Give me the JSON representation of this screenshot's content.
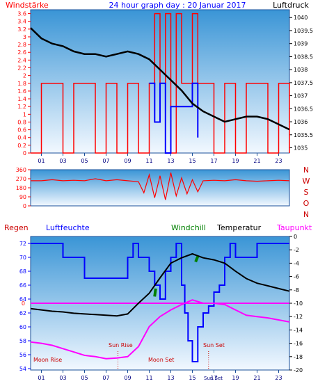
{
  "header": {
    "left": "Windstärke",
    "center": "24 hour graph day : 20 Januar 2017",
    "right": "Luftdruck"
  },
  "colors": {
    "red": "#ff0000",
    "blue": "#0000ff",
    "black": "#000000",
    "green": "#008000",
    "magenta": "#ff00ff",
    "darkred": "#cc0000",
    "navy": "#000080",
    "grad_top": "#3a95d6",
    "grad_bottom": "#f2f8ff"
  },
  "chart_data": [
    {
      "type": "line",
      "title": "Windstärke / Luftdruck",
      "xticks": [
        "01",
        "03",
        "05",
        "07",
        "09",
        "11",
        "13",
        "15",
        "17",
        "19",
        "21",
        "23"
      ],
      "y_left": {
        "label": "Windstärke",
        "ticks": [
          "0",
          "0.2",
          "0.4",
          "0.6",
          "0.8",
          "1",
          "1.2",
          "1.4",
          "1.6",
          "1.8",
          "2",
          "2.2",
          "2.4",
          "2.6",
          "2.8",
          "3",
          "3.2",
          "3.4",
          "3.6"
        ],
        "range": [
          0,
          3.7
        ]
      },
      "y_right": {
        "label": "Luftdruck",
        "ticks": [
          "1035",
          "1035.5",
          "1036",
          "1036.5",
          "1037",
          "1037.5",
          "1038",
          "1038.5",
          "1039",
          "1039.5",
          "1040"
        ],
        "range": [
          1034.8,
          1040.3
        ]
      },
      "series": [
        {
          "name": "Luftdruck",
          "x": [
            0,
            1,
            2,
            3,
            4,
            5,
            6,
            7,
            8,
            9,
            10,
            11,
            12,
            13,
            14,
            15,
            16,
            17,
            18,
            19,
            20,
            21,
            22,
            23,
            24
          ],
          "values": [
            1039.6,
            1039.2,
            1039.0,
            1038.9,
            1038.7,
            1038.6,
            1038.6,
            1038.5,
            1038.6,
            1038.7,
            1038.6,
            1038.4,
            1038.0,
            1037.6,
            1037.2,
            1036.7,
            1036.4,
            1036.2,
            1036.0,
            1036.1,
            1036.2,
            1036.2,
            1036.1,
            1035.9,
            1035.7
          ]
        },
        {
          "name": "Windstärke",
          "x": [
            0,
            1,
            2,
            3,
            4,
            5,
            6,
            7,
            8,
            9,
            10,
            11,
            11.5,
            12,
            12.5,
            13,
            13.5,
            14,
            15,
            15.5,
            16,
            17,
            18,
            19,
            20,
            21,
            22,
            23,
            24
          ],
          "values": [
            0,
            1.8,
            1.8,
            0,
            1.8,
            1.8,
            0,
            1.8,
            0,
            1.8,
            0,
            1.8,
            3.6,
            1.8,
            3.6,
            0,
            3.6,
            1.8,
            3.6,
            1.8,
            1.8,
            0,
            1.8,
            0,
            1.8,
            1.8,
            0,
            1.8,
            0
          ]
        },
        {
          "name": "Böen",
          "x": [
            11,
            11.5,
            12,
            12.5,
            13,
            15,
            15.5
          ],
          "values": [
            1.8,
            0.8,
            1.8,
            0,
            1.2,
            1.8,
            0.4
          ]
        }
      ]
    },
    {
      "type": "line",
      "title": "Windrichtung",
      "y_left": {
        "ticks": [
          "0",
          "90",
          "180",
          "270",
          "360"
        ],
        "range": [
          0,
          360
        ]
      },
      "y_right": {
        "ticks": [
          "N",
          "W",
          "S",
          "O",
          "N"
        ]
      },
      "series": [
        {
          "name": "Windrichtung",
          "x": [
            0,
            1,
            2,
            3,
            4,
            5,
            6,
            7,
            8,
            9,
            10,
            10.5,
            11,
            11.5,
            12,
            12.5,
            13,
            13.5,
            14,
            14.5,
            15,
            15.5,
            16,
            17,
            18,
            19,
            20,
            21,
            22,
            23,
            24
          ],
          "values": [
            250,
            250,
            260,
            250,
            255,
            250,
            270,
            250,
            260,
            250,
            240,
            130,
            310,
            80,
            300,
            60,
            330,
            100,
            280,
            120,
            260,
            140,
            250,
            255,
            250,
            260,
            250,
            245,
            250,
            255,
            250
          ]
        }
      ]
    },
    {
      "type": "line",
      "title": "Regen / Luftfeuchte / Windchill / Temperatur / Taupunkt",
      "legend": [
        "Regen",
        "Luftfeuchte",
        "Windchill",
        "Temperatur",
        "Taupunkt"
      ],
      "y_left": {
        "ticks": [
          "54",
          "56",
          "58",
          "60",
          "62",
          "64",
          "66",
          "68",
          "70",
          "72"
        ],
        "range": [
          53.8,
          73
        ]
      },
      "y_right": {
        "ticks": [
          "-20",
          "-18",
          "-16",
          "-14",
          "-12",
          "-10",
          "-8",
          "-6",
          "-4",
          "-2",
          "0"
        ],
        "range": [
          -20,
          0
        ]
      },
      "regen_label": "0",
      "annotations": {
        "moon_rise": "Moon Rise",
        "sun_rise": "Sun Rise",
        "moon_set": "Moon Set",
        "sun_set": "Sun Set",
        "sun_set_bottom": "Sun Set"
      },
      "series": [
        {
          "name": "Luftfeuchte",
          "x": [
            0,
            1,
            2,
            3,
            4,
            5,
            6,
            7,
            8,
            9,
            9.5,
            10,
            11,
            11.5,
            12,
            12.5,
            13,
            13.5,
            14,
            14.3,
            14.6,
            15,
            15.5,
            16,
            16.5,
            17,
            17.5,
            18,
            18.5,
            19,
            20,
            21,
            22,
            23,
            24
          ],
          "values": [
            72,
            72,
            72,
            70,
            70,
            67,
            67,
            67,
            67,
            70,
            72,
            70,
            68,
            66,
            64,
            68,
            70,
            72,
            66,
            62,
            58,
            55,
            60,
            62,
            63,
            65,
            66,
            70,
            72,
            70,
            70,
            72,
            72,
            72,
            72
          ]
        },
        {
          "name": "Temperatur",
          "x": [
            0,
            1,
            2,
            3,
            4,
            5,
            6,
            7,
            8,
            9,
            10,
            11,
            12,
            13,
            14,
            15,
            16,
            17,
            18,
            19,
            20,
            21,
            22,
            23,
            24
          ],
          "values": [
            -10.8,
            -11.0,
            -11.2,
            -11.3,
            -11.5,
            -11.6,
            -11.7,
            -11.8,
            -11.9,
            -11.6,
            -10.0,
            -8.5,
            -6.2,
            -4.0,
            -3.2,
            -2.6,
            -3.2,
            -3.5,
            -4.0,
            -5.2,
            -6.3,
            -7.0,
            -7.4,
            -7.8,
            -8.2
          ]
        },
        {
          "name": "Taupunkt",
          "x": [
            0,
            1,
            2,
            3,
            4,
            5,
            6,
            7,
            8,
            9,
            10,
            11,
            12,
            13,
            14,
            15,
            16,
            17,
            18,
            19,
            20,
            21,
            22,
            23,
            24
          ],
          "values": [
            -15.8,
            -16.0,
            -16.3,
            -16.8,
            -17.3,
            -17.8,
            -18.0,
            -18.3,
            -18.2,
            -18.0,
            -16.5,
            -13.5,
            -12.0,
            -11.0,
            -10.2,
            -9.5,
            -10.0,
            -10.0,
            -10.2,
            -11.0,
            -11.8,
            -12.0,
            -12.2,
            -12.5,
            -12.8
          ]
        },
        {
          "name": "Windchill",
          "x": [
            11.5,
            11.6,
            15.3,
            15.5
          ],
          "values": [
            -9.0,
            -7.8,
            -3.8,
            -3.0
          ]
        },
        {
          "name": "Regen",
          "x": [
            0,
            24
          ],
          "values": [
            -10,
            -10
          ]
        }
      ]
    }
  ]
}
